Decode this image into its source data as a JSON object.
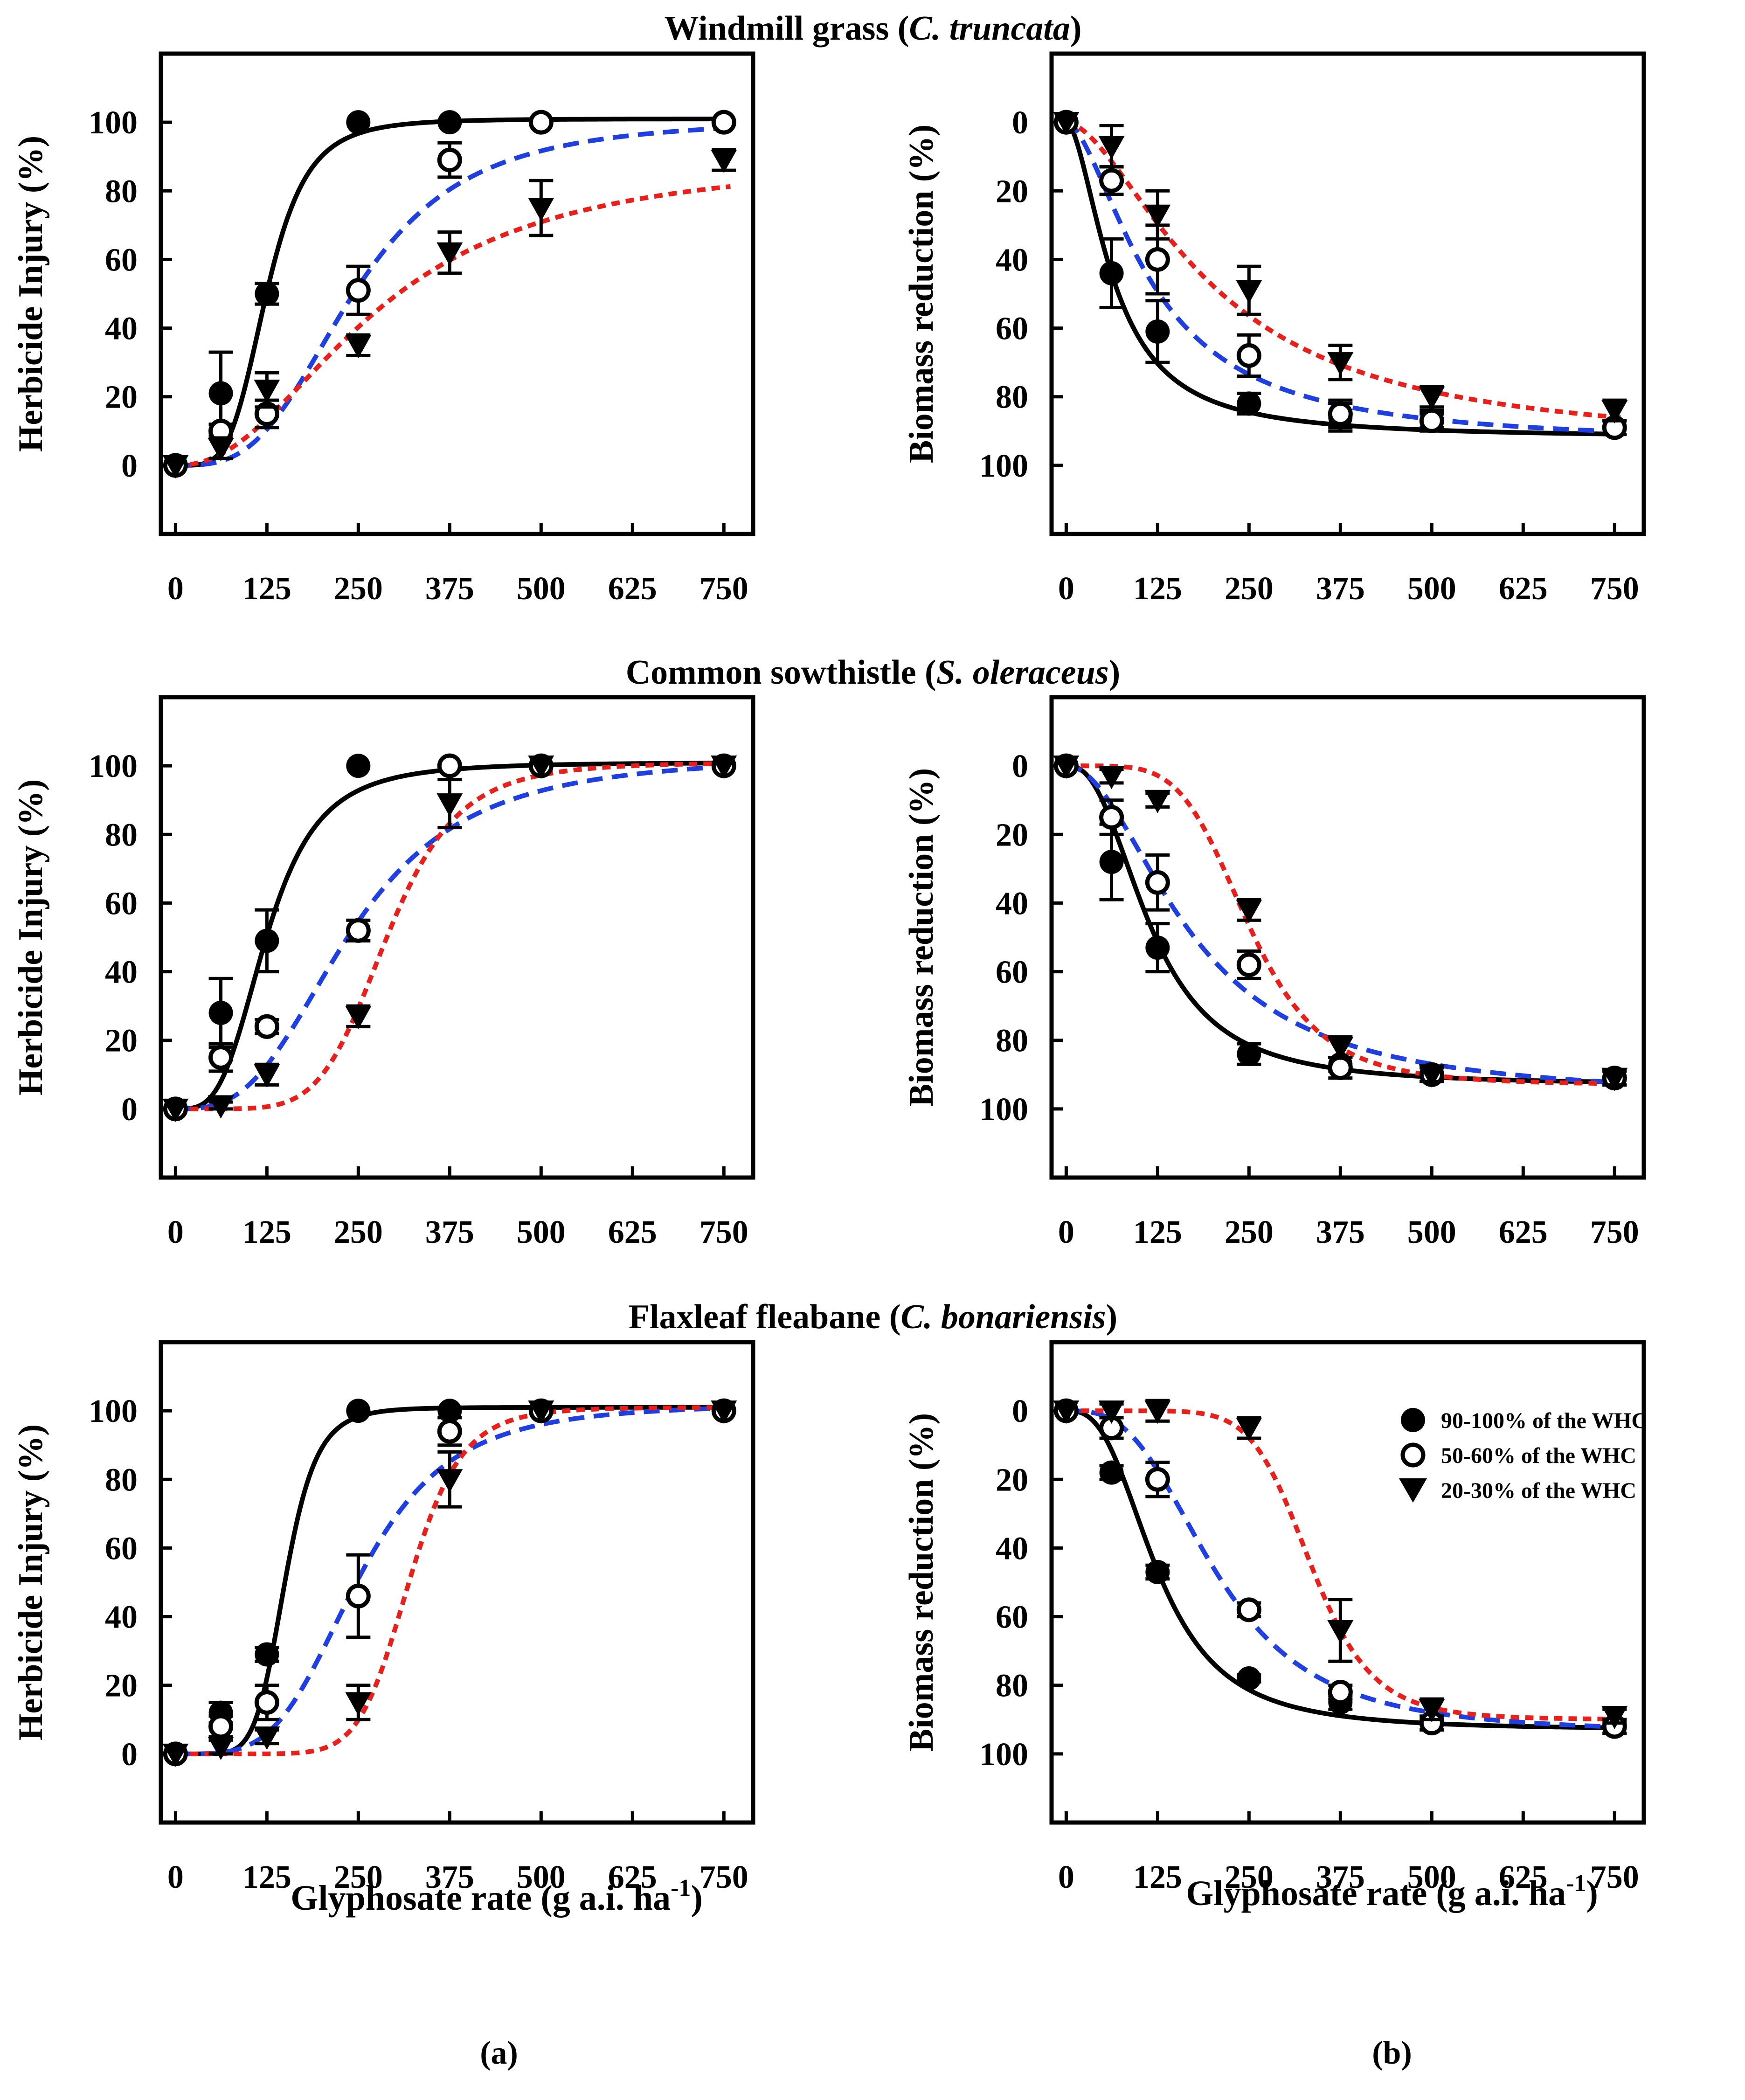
{
  "figure": {
    "rows": [
      {
        "title_prefix": "Windmill grass (",
        "title_species": "C. truncata",
        "title_suffix": ")"
      },
      {
        "title_prefix": "Common sowthistle (",
        "title_species": "S. oleraceus",
        "title_suffix": ")"
      },
      {
        "title_prefix": "Flaxleaf fleabane (",
        "title_species": "C. bonariensis",
        "title_suffix": ")"
      }
    ],
    "xlabel_main": "Glyphosate rate (g a.i. ha",
    "xlabel_sup": "-1",
    "xlabel_close": ")",
    "ylabel_injury": "Herbicide Injury (%)",
    "ylabel_biomass": "Biomass reduction  (%)",
    "panel_labels": [
      "(a)",
      "(b)"
    ],
    "legend": [
      {
        "label": "90-100% of the WHC",
        "marker": "filled-circle"
      },
      {
        "label": "50-60% of the WHC",
        "marker": "open-circle"
      },
      {
        "label": "20-30% of the WHC",
        "marker": "filled-triangle-down"
      }
    ],
    "colors": {
      "wet": "#000000",
      "mid": "#1f3fe0",
      "dry": "#e8201c"
    }
  },
  "chart_data": [
    {
      "type": "scatter",
      "id": "injury-windmill",
      "title": "Windmill grass (C. truncata)",
      "xlabel": "Glyphosate rate (g a.i. ha-1)",
      "ylabel": "Herbicide Injury (%)",
      "xticks": [
        0,
        125,
        250,
        375,
        500,
        625,
        750
      ],
      "yticks": [
        0,
        20,
        40,
        60,
        80,
        100
      ],
      "xlim": [
        -20,
        790
      ],
      "ylim": [
        -20,
        120
      ],
      "y_inverted": false,
      "series": [
        {
          "name": "90-100% of the WHC",
          "x": [
            0,
            62,
            125,
            250,
            375,
            500,
            750
          ],
          "y": [
            0,
            21,
            50,
            100,
            100,
            100,
            100
          ],
          "err": [
            0,
            12,
            3,
            0,
            0,
            0,
            0
          ],
          "curve": {
            "top": 101,
            "ec50": 125,
            "slope": 4.5,
            "dash": "solid"
          }
        },
        {
          "name": "50-60% of the WHC",
          "x": [
            0,
            62,
            125,
            250,
            375,
            500,
            750
          ],
          "y": [
            0,
            10,
            15,
            51,
            89,
            100,
            100
          ],
          "err": [
            0,
            2,
            4,
            7,
            5,
            0,
            0
          ],
          "curve": {
            "top": 101,
            "ec50": 245,
            "slope": 3.2,
            "dash": "dashed"
          }
        },
        {
          "name": "20-30% of the WHC",
          "x": [
            0,
            62,
            125,
            250,
            375,
            500,
            750
          ],
          "y": [
            0,
            5,
            22,
            35,
            62,
            75,
            89
          ],
          "err": [
            0,
            3,
            5,
            3,
            6,
            8,
            3
          ],
          "curve": {
            "top": 90,
            "ec50": 275,
            "slope": 2.2,
            "dash": "dotted"
          }
        }
      ]
    },
    {
      "type": "scatter",
      "id": "biomass-windmill",
      "title": "Windmill grass (C. truncata)",
      "xlabel": "Glyphosate rate (g a.i. ha-1)",
      "ylabel": "Biomass reduction (%)",
      "xticks": [
        0,
        125,
        250,
        375,
        500,
        625,
        750
      ],
      "yticks": [
        0,
        20,
        40,
        60,
        80,
        100
      ],
      "xlim": [
        -20,
        790
      ],
      "ylim": [
        -20,
        120
      ],
      "y_inverted": true,
      "series": [
        {
          "name": "90-100% of the WHC",
          "x": [
            0,
            62,
            125,
            250,
            375,
            500,
            750
          ],
          "y": [
            0,
            44,
            61,
            82,
            86,
            87,
            89
          ],
          "err": [
            0,
            10,
            9,
            3,
            4,
            3,
            2
          ],
          "curve": {
            "top": 92,
            "ec50": 65,
            "slope": 1.8,
            "dash": "solid"
          }
        },
        {
          "name": "50-60% of the WHC",
          "x": [
            0,
            62,
            125,
            250,
            375,
            500,
            750
          ],
          "y": [
            0,
            17,
            40,
            68,
            85,
            87,
            89
          ],
          "err": [
            0,
            4,
            10,
            6,
            4,
            2,
            2
          ],
          "curve": {
            "top": 94,
            "ec50": 118,
            "slope": 1.7,
            "dash": "dashed"
          }
        },
        {
          "name": "20-30% of the WHC",
          "x": [
            0,
            62,
            125,
            250,
            375,
            500,
            750
          ],
          "y": [
            0,
            7,
            27,
            49,
            70,
            80,
            84
          ],
          "err": [
            0,
            6,
            7,
            7,
            5,
            3,
            3
          ],
          "curve": {
            "top": 95,
            "ec50": 200,
            "slope": 1.7,
            "dash": "dotted"
          }
        }
      ]
    },
    {
      "type": "scatter",
      "id": "injury-sowthistle",
      "title": "Common sowthistle (S. oleraceus)",
      "xlabel": "Glyphosate rate (g a.i. ha-1)",
      "ylabel": "Herbicide Injury (%)",
      "xticks": [
        0,
        125,
        250,
        375,
        500,
        625,
        750
      ],
      "yticks": [
        0,
        20,
        40,
        60,
        80,
        100
      ],
      "xlim": [
        -20,
        790
      ],
      "ylim": [
        -20,
        120
      ],
      "y_inverted": false,
      "series": [
        {
          "name": "90-100% of the WHC",
          "x": [
            0,
            62,
            125,
            250,
            375,
            500,
            750
          ],
          "y": [
            0,
            28,
            49,
            100,
            100,
            100,
            100
          ],
          "err": [
            0,
            10,
            9,
            0,
            0,
            0,
            0
          ],
          "curve": {
            "top": 101,
            "ec50": 125,
            "slope": 3.5,
            "dash": "solid"
          }
        },
        {
          "name": "50-60% of the WHC",
          "x": [
            0,
            62,
            125,
            250,
            375,
            500,
            750
          ],
          "y": [
            0,
            15,
            24,
            52,
            100,
            100,
            100
          ],
          "err": [
            0,
            4,
            2,
            3,
            0,
            0,
            0
          ],
          "curve": {
            "top": 103,
            "ec50": 240,
            "slope": 3.0,
            "dash": "dashed"
          }
        },
        {
          "name": "20-30% of the WHC",
          "x": [
            0,
            62,
            125,
            250,
            375,
            500,
            750
          ],
          "y": [
            0,
            1,
            10,
            27,
            89,
            100,
            100
          ],
          "err": [
            0,
            1,
            3,
            3,
            7,
            0,
            0
          ],
          "curve": {
            "top": 101,
            "ec50": 290,
            "slope": 6.0,
            "dash": "dotted"
          }
        }
      ]
    },
    {
      "type": "scatter",
      "id": "biomass-sowthistle",
      "title": "Common sowthistle (S. oleraceus)",
      "xlabel": "Glyphosate rate (g a.i. ha-1)",
      "ylabel": "Biomass reduction (%)",
      "xticks": [
        0,
        125,
        250,
        375,
        500,
        625,
        750
      ],
      "yticks": [
        0,
        20,
        40,
        60,
        80,
        100
      ],
      "xlim": [
        -20,
        790
      ],
      "ylim": [
        -20,
        120
      ],
      "y_inverted": true,
      "series": [
        {
          "name": "90-100% of the WHC",
          "x": [
            0,
            62,
            125,
            250,
            375,
            500,
            750
          ],
          "y": [
            0,
            28,
            53,
            84,
            87,
            90,
            91
          ],
          "err": [
            0,
            11,
            7,
            3,
            2,
            2,
            2
          ],
          "curve": {
            "top": 93,
            "ec50": 115,
            "slope": 2.5,
            "dash": "solid"
          }
        },
        {
          "name": "50-60% of the WHC",
          "x": [
            0,
            62,
            125,
            250,
            375,
            500,
            750
          ],
          "y": [
            0,
            15,
            34,
            58,
            88,
            90,
            91
          ],
          "err": [
            0,
            5,
            8,
            4,
            3,
            2,
            2
          ],
          "curve": {
            "top": 97,
            "ec50": 170,
            "slope": 2.0,
            "dash": "dashed"
          }
        },
        {
          "name": "20-30% of the WHC",
          "x": [
            0,
            62,
            125,
            250,
            375,
            500,
            750
          ],
          "y": [
            0,
            3,
            10,
            42,
            82,
            90,
            91
          ],
          "err": [
            0,
            2,
            2,
            3,
            3,
            2,
            2
          ],
          "curve": {
            "top": 93,
            "ec50": 250,
            "slope": 5.0,
            "dash": "dotted"
          }
        }
      ]
    },
    {
      "type": "scatter",
      "id": "injury-fleabane",
      "title": "Flaxleaf fleabane (C. bonariensis)",
      "xlabel": "Glyphosate rate (g a.i. ha-1)",
      "ylabel": "Herbicide Injury (%)",
      "xticks": [
        0,
        125,
        250,
        375,
        500,
        625,
        750
      ],
      "yticks": [
        0,
        20,
        40,
        60,
        80,
        100
      ],
      "xlim": [
        -20,
        790
      ],
      "ylim": [
        -20,
        120
      ],
      "y_inverted": false,
      "series": [
        {
          "name": "90-100% of the WHC",
          "x": [
            0,
            62,
            125,
            250,
            375,
            500,
            750
          ],
          "y": [
            0,
            12,
            29,
            100,
            100,
            100,
            100
          ],
          "err": [
            0,
            3,
            2,
            0,
            0,
            0,
            0
          ],
          "curve": {
            "top": 101,
            "ec50": 150,
            "slope": 7.0,
            "dash": "solid"
          }
        },
        {
          "name": "50-60% of the WHC",
          "x": [
            0,
            62,
            125,
            250,
            375,
            500,
            750
          ],
          "y": [
            0,
            8,
            15,
            46,
            94,
            100,
            100
          ],
          "err": [
            0,
            3,
            5,
            12,
            4,
            0,
            0
          ],
          "curve": {
            "top": 102,
            "ec50": 250,
            "slope": 4.0,
            "dash": "dashed"
          }
        },
        {
          "name": "20-30% of the WHC",
          "x": [
            0,
            62,
            125,
            250,
            375,
            500,
            750
          ],
          "y": [
            0,
            2,
            5,
            15,
            80,
            100,
            100
          ],
          "err": [
            0,
            2,
            2,
            5,
            8,
            0,
            0
          ],
          "curve": {
            "top": 101,
            "ec50": 320,
            "slope": 9.0,
            "dash": "dotted"
          }
        }
      ]
    },
    {
      "type": "scatter",
      "id": "biomass-fleabane",
      "title": "Flaxleaf fleabane (C. bonariensis)",
      "xlabel": "Glyphosate rate (g a.i. ha-1)",
      "ylabel": "Biomass reduction (%)",
      "xticks": [
        0,
        125,
        250,
        375,
        500,
        625,
        750
      ],
      "yticks": [
        0,
        20,
        40,
        60,
        80,
        100
      ],
      "xlim": [
        -20,
        790
      ],
      "ylim": [
        -20,
        120
      ],
      "y_inverted": true,
      "series": [
        {
          "name": "90-100% of the WHC",
          "x": [
            0,
            62,
            125,
            250,
            375,
            500,
            750
          ],
          "y": [
            0,
            18,
            47,
            78,
            85,
            91,
            92
          ],
          "err": [
            0,
            2,
            2,
            1,
            2,
            2,
            2
          ],
          "curve": {
            "top": 93,
            "ec50": 125,
            "slope": 2.8,
            "dash": "solid"
          }
        },
        {
          "name": "50-60% of the WHC",
          "x": [
            0,
            62,
            125,
            250,
            375,
            500,
            750
          ],
          "y": [
            0,
            5,
            20,
            58,
            82,
            91,
            92
          ],
          "err": [
            0,
            3,
            5,
            2,
            2,
            2,
            2
          ],
          "curve": {
            "top": 94,
            "ec50": 205,
            "slope": 3.0,
            "dash": "dashed"
          }
        },
        {
          "name": "20-30% of the WHC",
          "x": [
            0,
            62,
            125,
            250,
            375,
            500,
            750
          ],
          "y": [
            0,
            0,
            0,
            5,
            64,
            87,
            89
          ],
          "err": [
            0,
            2,
            3,
            3,
            9,
            3,
            2
          ],
          "curve": {
            "top": 90,
            "ec50": 335,
            "slope": 8.0,
            "dash": "dotted"
          }
        }
      ]
    }
  ]
}
